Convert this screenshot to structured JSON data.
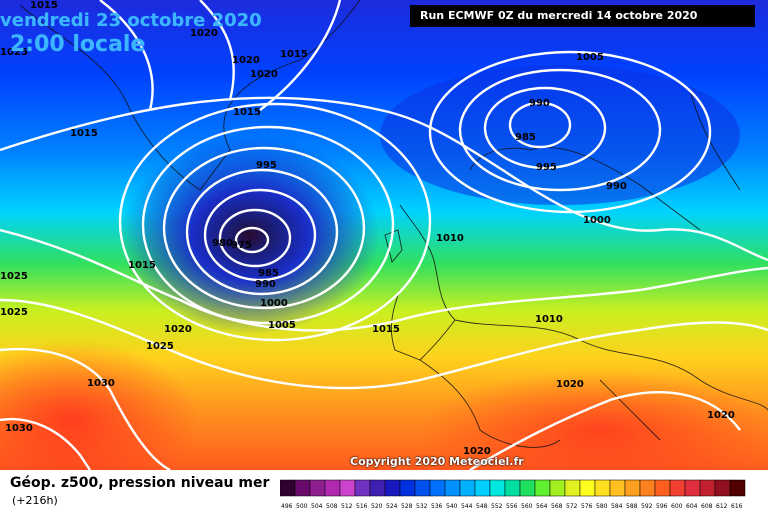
{
  "header": {
    "date": "vendredi 23 octobre 2020",
    "time": "2:00 locale",
    "run": "Run ECMWF 0Z du mercredi 14 octobre 2020"
  },
  "footer": {
    "copyright": "Copyright 2020 Meteociel.fr",
    "title": "Géop. z500, pression niveau mer",
    "subtitle": "(+216h)"
  },
  "isobar_labels": [
    "1015",
    "1020",
    "1020",
    "1015",
    "1020",
    "1015",
    "1015",
    "995",
    "980",
    "975",
    "985",
    "990",
    "1000",
    "1005",
    "1015",
    "1015",
    "1025",
    "1020",
    "1025",
    "1030",
    "1030",
    "1005",
    "990",
    "985",
    "995",
    "990",
    "1000",
    "1010",
    "1010",
    "1020",
    "1020",
    "1020",
    "1025",
    "1025"
  ],
  "scale": {
    "labels": [
      "496",
      "500",
      "504",
      "508",
      "512",
      "516",
      "520",
      "524",
      "528",
      "532",
      "536",
      "540",
      "544",
      "548",
      "552",
      "556",
      "560",
      "564",
      "568",
      "572",
      "576",
      "580",
      "584",
      "588",
      "592",
      "596",
      "600",
      "604",
      "608",
      "612",
      "616"
    ],
    "colors": [
      "#300030",
      "#6a0a6a",
      "#8f1f8f",
      "#b02ab0",
      "#cc44cc",
      "#7030c0",
      "#4020b0",
      "#1818c0",
      "#0030e0",
      "#0050f0",
      "#0070ff",
      "#0090ff",
      "#00b0ff",
      "#00d0ff",
      "#00e8e0",
      "#00e0a0",
      "#20e060",
      "#60f030",
      "#a0f020",
      "#e0f020",
      "#ffff20",
      "#ffe020",
      "#ffc020",
      "#ffa020",
      "#ff8020",
      "#ff6020",
      "#f04030",
      "#e03040",
      "#c02030",
      "#901020",
      "#500000"
    ]
  }
}
